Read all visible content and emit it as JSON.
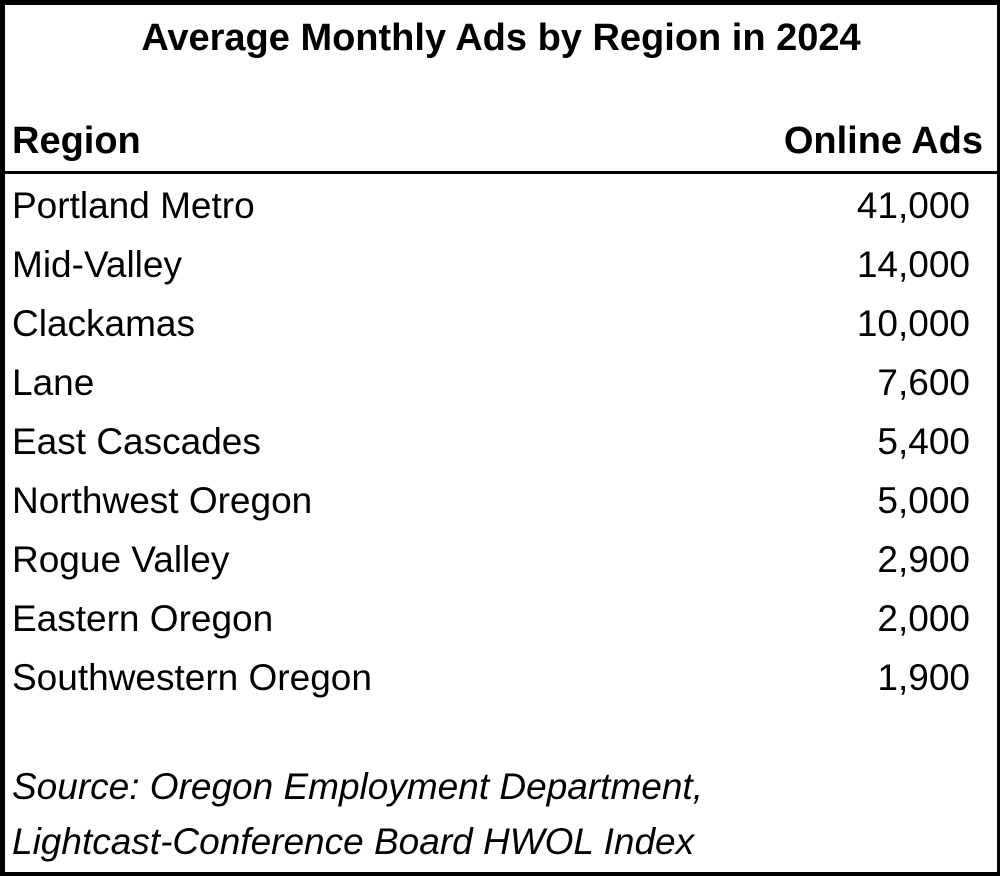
{
  "title": "Average Monthly Ads by Region in 2024",
  "table": {
    "columns": {
      "region": "Region",
      "ads": "Online Ads"
    },
    "rows": [
      {
        "region": "Portland Metro",
        "ads": "41,000"
      },
      {
        "region": "Mid-Valley",
        "ads": "14,000"
      },
      {
        "region": "Clackamas",
        "ads": "10,000"
      },
      {
        "region": "Lane",
        "ads": "7,600"
      },
      {
        "region": "East Cascades",
        "ads": "5,400"
      },
      {
        "region": "Northwest Oregon",
        "ads": "5,000"
      },
      {
        "region": "Rogue Valley",
        "ads": "2,900"
      },
      {
        "region": "Eastern Oregon",
        "ads": "2,000"
      },
      {
        "region": "Southwestern Oregon",
        "ads": "1,900"
      }
    ]
  },
  "source": {
    "line1": "Source: Oregon Employment Department,",
    "line2": "Lightcast-Conference Board HWOL Index"
  },
  "chart_data": {
    "type": "table",
    "title": "Average Monthly Ads by Region in 2024",
    "columns": [
      "Region",
      "Online Ads"
    ],
    "categories": [
      "Portland Metro",
      "Mid-Valley",
      "Clackamas",
      "Lane",
      "East Cascades",
      "Northwest Oregon",
      "Rogue Valley",
      "Eastern Oregon",
      "Southwestern Oregon"
    ],
    "values": [
      41000,
      14000,
      10000,
      7600,
      5400,
      5000,
      2900,
      2000,
      1900
    ],
    "source": "Source: Oregon Employment Department, Lightcast-Conference Board HWOL Index",
    "colors": {
      "text": "#000000",
      "background": "#ffffff",
      "border": "#000000"
    }
  }
}
